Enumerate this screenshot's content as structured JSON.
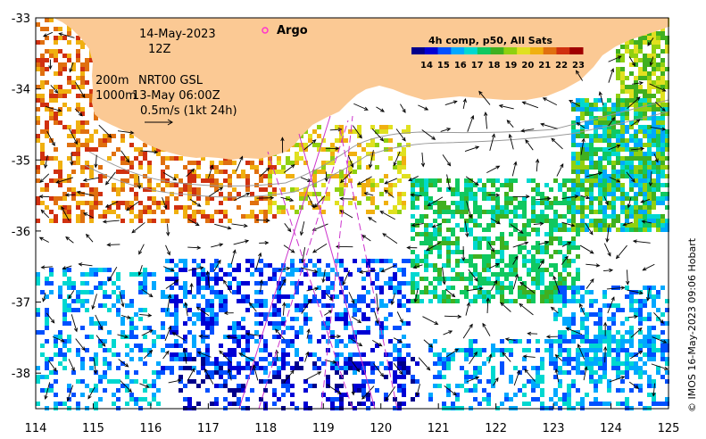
{
  "map": {
    "lon_range": [
      114,
      125
    ],
    "lat_range": [
      -38.5,
      -33
    ],
    "x_ticks": [
      "114",
      "115",
      "116",
      "117",
      "118",
      "119",
      "120",
      "121",
      "122",
      "123",
      "124",
      "125"
    ],
    "y_ticks": [
      "-33",
      "-34",
      "-35",
      "-36",
      "-37",
      "-38"
    ],
    "colors": {
      "land": "#fbc994",
      "track": "#cc33cc",
      "float": "#ff33cc",
      "contour": "#999999"
    }
  },
  "annotations": {
    "date": "14-May-2023",
    "hour": "12Z",
    "depth_200": "200m",
    "depth_1000": "1000m",
    "product": "NRT00 GSL",
    "product_time": "13-May 06:00Z",
    "scale_label": "0.5m/s (1kt 24h)"
  },
  "legend": {
    "argo_label": "Argo"
  },
  "colorbar": {
    "title": "4h comp, p50, All Sats",
    "ticks": [
      "14",
      "15",
      "16",
      "17",
      "18",
      "19",
      "20",
      "21",
      "22",
      "23"
    ],
    "colors": [
      "#00008b",
      "#0000d4",
      "#0050ff",
      "#00a8ff",
      "#00d8d0",
      "#10c860",
      "#40b020",
      "#90d010",
      "#e0e020",
      "#f0b010",
      "#e07010",
      "#d03010",
      "#a00000"
    ]
  },
  "credit": "© IMOS 16-May-2023 09:06 Hobart"
}
